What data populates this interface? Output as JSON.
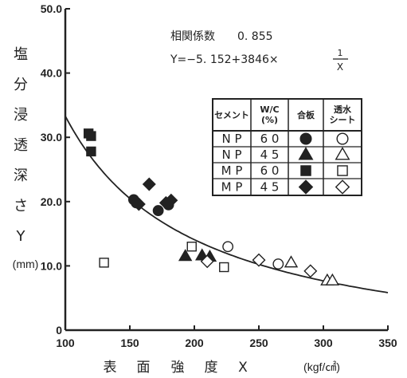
{
  "chart_data": {
    "type": "scatter",
    "title": "",
    "xlabel_parts": [
      "表",
      "面",
      "強",
      "度",
      "X"
    ],
    "xlabel_unit": "(kgf/㎠)",
    "ylabel_parts": [
      "塩",
      "分",
      "浸",
      "透",
      "深",
      "さ",
      "Y"
    ],
    "ylabel_unit": "(mm)",
    "xlim": [
      100,
      350
    ],
    "ylim": [
      0,
      50
    ],
    "x_ticks": [
      100,
      150,
      200,
      250,
      300,
      350
    ],
    "y_ticks": [
      0,
      10.0,
      20.0,
      30.0,
      40.0,
      50.0
    ],
    "y_tick_labels": [
      "0",
      "10.0",
      "20.0",
      "30.0",
      "40.0",
      "50.0"
    ],
    "x_tick_labels": [
      "100",
      "150",
      "200",
      "250",
      "300",
      "350"
    ],
    "annotation": {
      "correlation_label": "相関係数",
      "correlation_value": "0. 855",
      "equation_left": "Y=−5. 152+3846×",
      "equation_num": "1",
      "equation_den": "X"
    },
    "fit_curve": {
      "a": -5.152,
      "b": 3846,
      "form": "a + b / x"
    },
    "legend": {
      "headers": [
        "セメント",
        "W/C\n(%)",
        "合板",
        "透水\nシート"
      ],
      "rows": [
        {
          "cement": "N P",
          "wc": "6 0",
          "plywood_marker": "circle-filled",
          "sheet_marker": "circle-open"
        },
        {
          "cement": "N P",
          "wc": "4 5",
          "plywood_marker": "triangle-filled",
          "sheet_marker": "triangle-open"
        },
        {
          "cement": "M P",
          "wc": "6 0",
          "plywood_marker": "square-filled",
          "sheet_marker": "square-open"
        },
        {
          "cement": "M P",
          "wc": "4 5",
          "plywood_marker": "diamond-filled",
          "sheet_marker": "diamond-open"
        }
      ]
    },
    "series": [
      {
        "key": "np60_plywood",
        "marker": "circle-filled",
        "points": [
          [
            153,
            20.3
          ],
          [
            155,
            19.8
          ],
          [
            172,
            18.6
          ],
          [
            180,
            19.5
          ]
        ]
      },
      {
        "key": "np45_plywood",
        "marker": "triangle-filled",
        "points": [
          [
            193,
            11.5
          ],
          [
            206,
            11.6
          ],
          [
            212,
            11.4
          ]
        ]
      },
      {
        "key": "mp60_plywood",
        "marker": "square-filled",
        "points": [
          [
            118,
            30.6
          ],
          [
            120,
            30.2
          ],
          [
            120,
            27.8
          ]
        ]
      },
      {
        "key": "mp45_plywood",
        "marker": "diamond-filled",
        "points": [
          [
            157,
            19.6
          ],
          [
            165,
            22.7
          ],
          [
            178,
            19.8
          ],
          [
            182,
            20.2
          ]
        ]
      },
      {
        "key": "np60_sheet",
        "marker": "circle-open",
        "points": [
          [
            226,
            13.0
          ],
          [
            265,
            10.3
          ]
        ]
      },
      {
        "key": "np45_sheet",
        "marker": "triangle-open",
        "points": [
          [
            275,
            10.5
          ],
          [
            303,
            7.7
          ],
          [
            307,
            7.7
          ]
        ]
      },
      {
        "key": "mp60_sheet",
        "marker": "square-open",
        "points": [
          [
            130,
            10.5
          ],
          [
            198,
            13.0
          ],
          [
            223,
            9.8
          ]
        ]
      },
      {
        "key": "mp45_sheet",
        "marker": "diamond-open",
        "points": [
          [
            210,
            10.7
          ],
          [
            250,
            10.9
          ],
          [
            290,
            9.2
          ]
        ]
      }
    ]
  }
}
